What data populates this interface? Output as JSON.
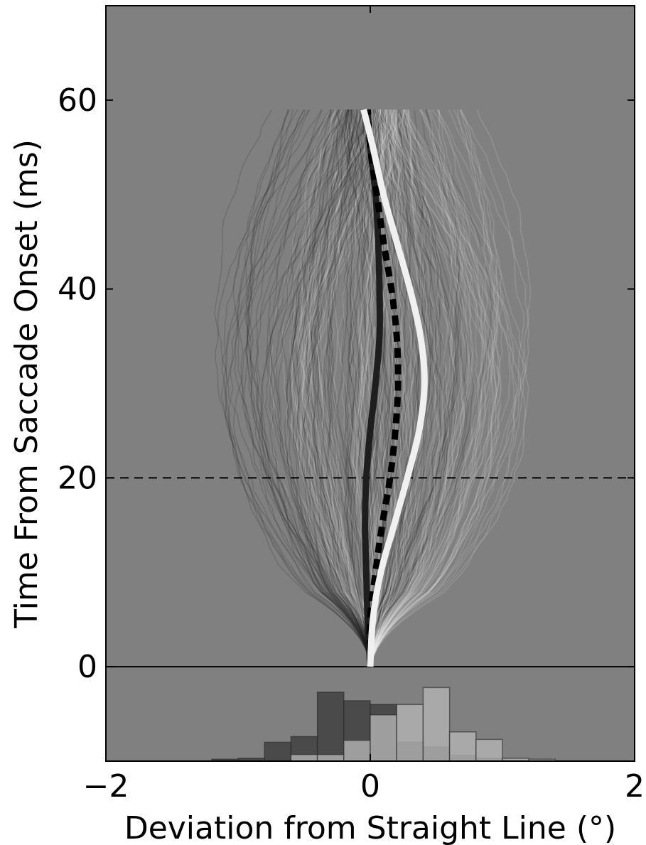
{
  "chart_data": {
    "type": "line",
    "title": "",
    "xlabel": "Deviation from Straight Line (°)",
    "ylabel": "Time From Saccade Onset (ms)",
    "xlim": [
      -2,
      2
    ],
    "ylim": [
      -10,
      70
    ],
    "xticks": [
      -2,
      0,
      2
    ],
    "xtick_labels": [
      "−2",
      "0",
      "2"
    ],
    "yticks": [
      0,
      20,
      40,
      60
    ],
    "ytick_labels": [
      "0",
      "20",
      "40",
      "60"
    ],
    "grid": false,
    "legend": "none",
    "background": "#808080",
    "reference_lines": [
      {
        "axis": "y",
        "value": 20,
        "style": "dashed",
        "color": "#000000"
      },
      {
        "axis": "y",
        "value": 0,
        "style": "solid",
        "color": "#000000"
      }
    ],
    "individual_trajectories": {
      "description_shown": "many faint single-trial traces",
      "dark_group_color": "#1a1a1a",
      "light_group_color": "#f2f2f2",
      "time_range": [
        0,
        59
      ]
    },
    "series": [
      {
        "style": "solid",
        "color": "#1e1e1e",
        "t": [
          0,
          5,
          10,
          15,
          20,
          25,
          30,
          35,
          40,
          45,
          50,
          55,
          59
        ],
        "x": [
          0.0,
          -0.02,
          -0.03,
          -0.04,
          -0.03,
          0.0,
          0.04,
          0.07,
          0.07,
          0.06,
          0.04,
          0.0,
          -0.02
        ]
      },
      {
        "style": "dashed",
        "color": "#000000",
        "t": [
          0,
          5,
          10,
          15,
          20,
          25,
          30,
          35,
          40,
          45,
          50,
          55,
          59
        ],
        "x": [
          0.0,
          0.0,
          0.04,
          0.09,
          0.15,
          0.19,
          0.21,
          0.2,
          0.16,
          0.1,
          0.05,
          0.0,
          -0.02
        ]
      },
      {
        "style": "solid",
        "color": "#f0f0f0",
        "t": [
          0,
          5,
          10,
          15,
          20,
          25,
          30,
          35,
          40,
          45,
          50,
          55,
          59
        ],
        "x": [
          0.0,
          0.02,
          0.08,
          0.18,
          0.28,
          0.37,
          0.41,
          0.38,
          0.3,
          0.2,
          0.1,
          0.02,
          -0.05
        ]
      }
    ],
    "histograms": {
      "bins": [
        -1.4,
        -1.2,
        -1.0,
        -0.8,
        -0.6,
        -0.4,
        -0.2,
        0.0,
        0.2,
        0.4,
        0.6,
        0.8,
        1.0,
        1.2,
        1.4
      ],
      "dark_counts": [
        0,
        0.2,
        0.3,
        2.0,
        2.6,
        7.3,
        6.4,
        6.0,
        2.0,
        1.5,
        0.6,
        0.3,
        0.1,
        0
      ],
      "light_counts": [
        0,
        0,
        0,
        0,
        0.7,
        0.7,
        2.2,
        4.9,
        6.0,
        7.8,
        3.1,
        2.3,
        0.3,
        0.2
      ],
      "dark_color": "#444444",
      "light_color": "#b3b3b3"
    }
  }
}
